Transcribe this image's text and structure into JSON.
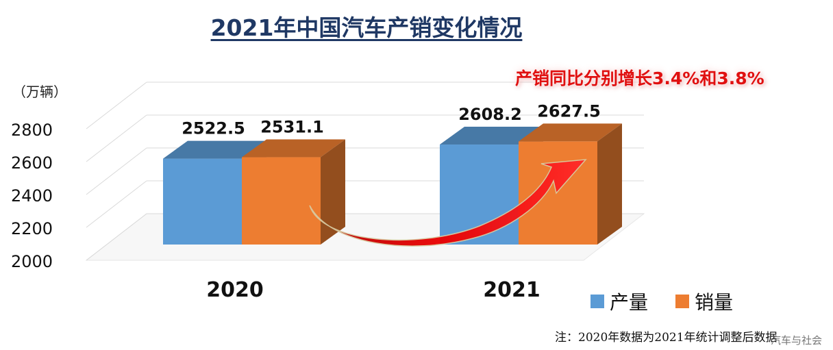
{
  "title": "2021年中国汽车产销变化情况",
  "unit_label": "（万辆）",
  "annotation": "产销同比分别增长3.4%和3.8%",
  "note": "注：2020年数据为2021年统计调整后数据",
  "source": "汽车与社会",
  "colors": {
    "production": "#5b9bd5",
    "sales": "#ed7d31",
    "arrow": "#ee0000"
  },
  "chart_data": {
    "type": "bar",
    "categories": [
      "2020",
      "2021"
    ],
    "series": [
      {
        "name": "产量",
        "values": [
          2522.5,
          2608.2
        ]
      },
      {
        "name": "销量",
        "values": [
          2531.1,
          2627.5
        ]
      }
    ],
    "y_ticks": [
      "2000",
      "2200",
      "2400",
      "2600",
      "2800"
    ],
    "ylim": [
      2000,
      2800
    ],
    "grid": true,
    "legend": "bottom-right",
    "data_labels": [
      [
        "2522.5",
        "2608.2"
      ],
      [
        "2531.1",
        "2627.5"
      ]
    ]
  }
}
